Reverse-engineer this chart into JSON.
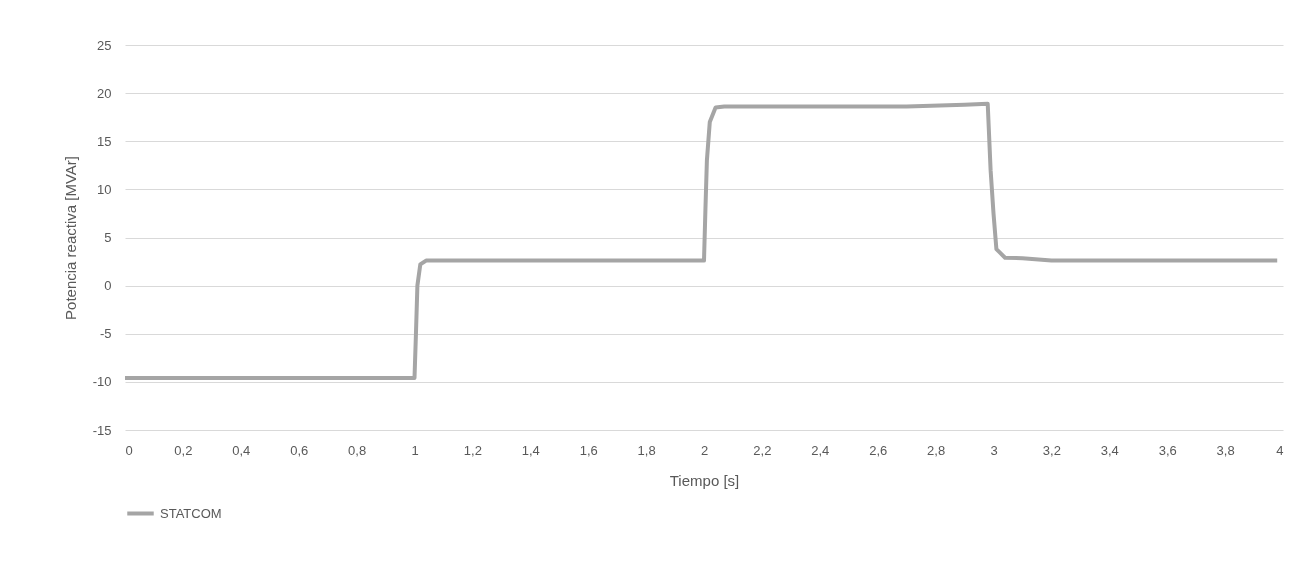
{
  "chart_data": {
    "type": "line",
    "xlabel": "Tiempo [s]",
    "ylabel": "Potencia reactiva [MVAr]",
    "xlim": [
      0,
      4
    ],
    "ylim": [
      -15,
      25
    ],
    "xticks": [
      0,
      {
        "value": 0.2,
        "label": "0,2"
      },
      {
        "value": 0.4,
        "label": "0,4"
      },
      {
        "value": 0.6,
        "label": "0,6"
      },
      {
        "value": 0.8,
        "label": "0,8"
      },
      1,
      {
        "value": 1.2,
        "label": "1,2"
      },
      {
        "value": 1.4,
        "label": "1,4"
      },
      {
        "value": 1.6,
        "label": "1,6"
      },
      {
        "value": 1.8,
        "label": "1,8"
      },
      2,
      {
        "value": 2.2,
        "label": "2,2"
      },
      {
        "value": 2.4,
        "label": "2,4"
      },
      {
        "value": 2.6,
        "label": "2,6"
      },
      {
        "value": 2.8,
        "label": "2,8"
      },
      3,
      {
        "value": 3.2,
        "label": "3,2"
      },
      {
        "value": 3.4,
        "label": "3,4"
      },
      {
        "value": 3.6,
        "label": "3,6"
      },
      {
        "value": 3.8,
        "label": "3,8"
      },
      4
    ],
    "yticks": [
      -15,
      -10,
      -5,
      0,
      5,
      10,
      15,
      20,
      25
    ],
    "grid": "y",
    "legend": "bottom",
    "line_style": "solid",
    "marker": "none",
    "series": [
      {
        "name": "STATCOM",
        "color": "#a5a5a5",
        "x": [
          0,
          1.0,
          1.005,
          1.01,
          1.02,
          1.04,
          2.0,
          2.005,
          2.01,
          2.02,
          2.04,
          2.07,
          2.7,
          2.9,
          2.98,
          2.99,
          3.0,
          3.01,
          3.04,
          3.1,
          3.2,
          3.98
        ],
        "values": [
          -9.6,
          -9.6,
          -5,
          0,
          2.2,
          2.6,
          2.6,
          8,
          13,
          17,
          18.5,
          18.6,
          18.6,
          18.8,
          18.9,
          12,
          7.5,
          3.8,
          2.9,
          2.85,
          2.6,
          2.6
        ]
      }
    ]
  }
}
